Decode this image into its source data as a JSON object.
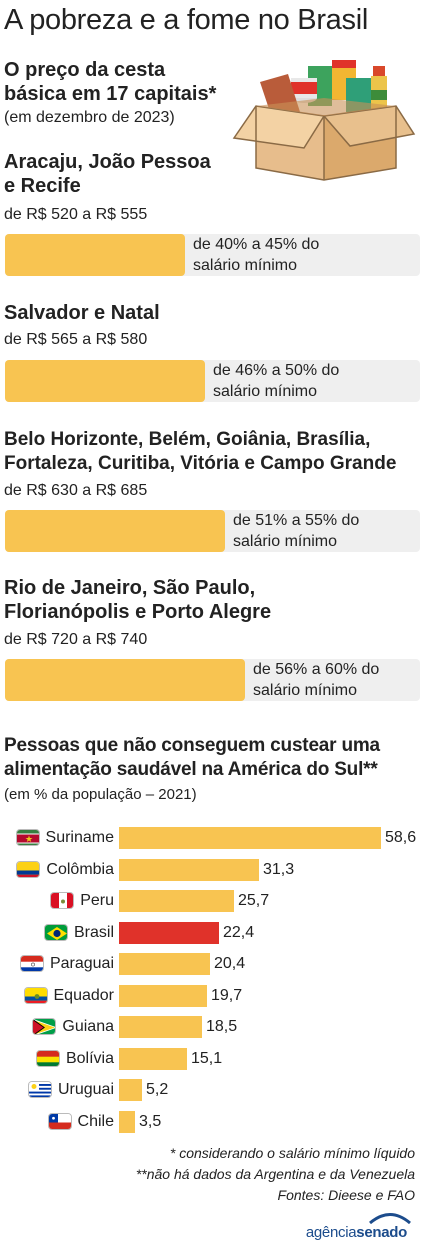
{
  "title": "A pobreza e a fome no Brasil",
  "section1": {
    "heading_line1": "O preço da cesta",
    "heading_line2": "básica em 17 capitais*",
    "subtitle": "(em dezembro de 2023)",
    "groups": [
      {
        "cities_line1": "Aracaju, João Pessoa",
        "cities_line2": "e Recife",
        "range": "de R$ 520 a R$ 555",
        "pct_line1": "de 40% a 45% do",
        "pct_line2": "salário mínimo",
        "fill_fraction": 0.45
      },
      {
        "cities_line1": "Salvador e Natal",
        "cities_line2": "",
        "range": "de R$ 565 a R$ 580",
        "pct_line1": "de 46% a 50% do",
        "pct_line2": "salário mínimo",
        "fill_fraction": 0.5
      },
      {
        "cities_line1": "Belo Horizonte, Belém, Goiânia, Brasília,",
        "cities_line2": "Fortaleza, Curitiba, Vitória e Campo Grande",
        "range": "de R$ 630 a R$ 685",
        "pct_line1": "de 51% a 55% do",
        "pct_line2": "salário mínimo",
        "fill_fraction": 0.55
      },
      {
        "cities_line1": "Rio de Janeiro, São Paulo,",
        "cities_line2": "Florianópolis e Porto Alegre",
        "range": "de R$ 720 a R$ 740",
        "pct_line1": "de 56% a 60% do",
        "pct_line2": "salário mínimo",
        "fill_fraction": 0.6
      }
    ]
  },
  "section2": {
    "heading_line1": "Pessoas que não conseguem custear uma",
    "heading_line2": "alimentação saudável na América do Sul**",
    "subtitle": "(em % da população –   2021)"
  },
  "chart_data": {
    "type": "bar",
    "orientation": "horizontal",
    "categories": [
      "Suriname",
      "Colômbia",
      "Peru",
      "Brasil",
      "Paraguai",
      "Equador",
      "Guiana",
      "Bolívia",
      "Uruguai",
      "Chile"
    ],
    "values": [
      58.6,
      31.3,
      25.7,
      22.4,
      20.4,
      19.7,
      18.5,
      15.1,
      5.2,
      3.5
    ],
    "value_labels": [
      "58,6",
      "31,3",
      "25,7",
      "22,4",
      "20,4",
      "19,7",
      "18,5",
      "15,1",
      "5,2",
      "3,5"
    ],
    "highlight": "Brasil",
    "colors": {
      "bar": "#f8c451",
      "highlight": "#e0322a",
      "track": "#efefef"
    },
    "flag_icons": [
      "suriname-flag-icon",
      "colombia-flag-icon",
      "peru-flag-icon",
      "brazil-flag-icon",
      "paraguay-flag-icon",
      "ecuador-flag-icon",
      "guyana-flag-icon",
      "bolivia-flag-icon",
      "uruguay-flag-icon",
      "chile-flag-icon"
    ]
  },
  "footnotes": {
    "note1": "* considerando o salário mínimo líquido",
    "note2": "**não há dados da Argentina e da Venezuela",
    "sources": "Fontes: Dieese e FAO"
  },
  "logo": {
    "part1": "agência",
    "part2": "senado"
  }
}
